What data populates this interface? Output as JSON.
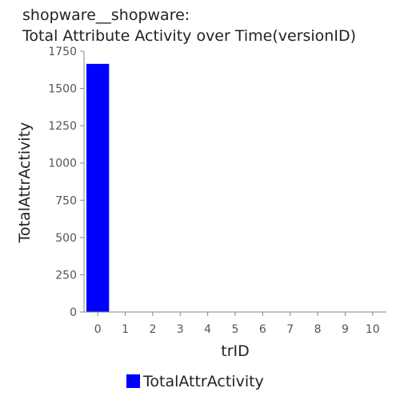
{
  "chart_data": {
    "type": "bar",
    "title": [
      "shopware__shopware:",
      "Total Attribute Activity over Time(versionID)"
    ],
    "xlabel": "trID",
    "ylabel": "TotalAttrActivity",
    "categories": [
      "0",
      "1",
      "2",
      "3",
      "4",
      "5",
      "6",
      "7",
      "8",
      "9",
      "10"
    ],
    "series": [
      {
        "name": "TotalAttrActivity",
        "color": "#0000ff",
        "values": [
          1665,
          0,
          0,
          0,
          0,
          0,
          0,
          0,
          0,
          0,
          0
        ]
      }
    ],
    "ylim": [
      0,
      1750
    ],
    "yticks": [
      0,
      250,
      500,
      750,
      1000,
      1250,
      1500,
      1750
    ],
    "grid": false,
    "legend_position": "bottom-center"
  }
}
